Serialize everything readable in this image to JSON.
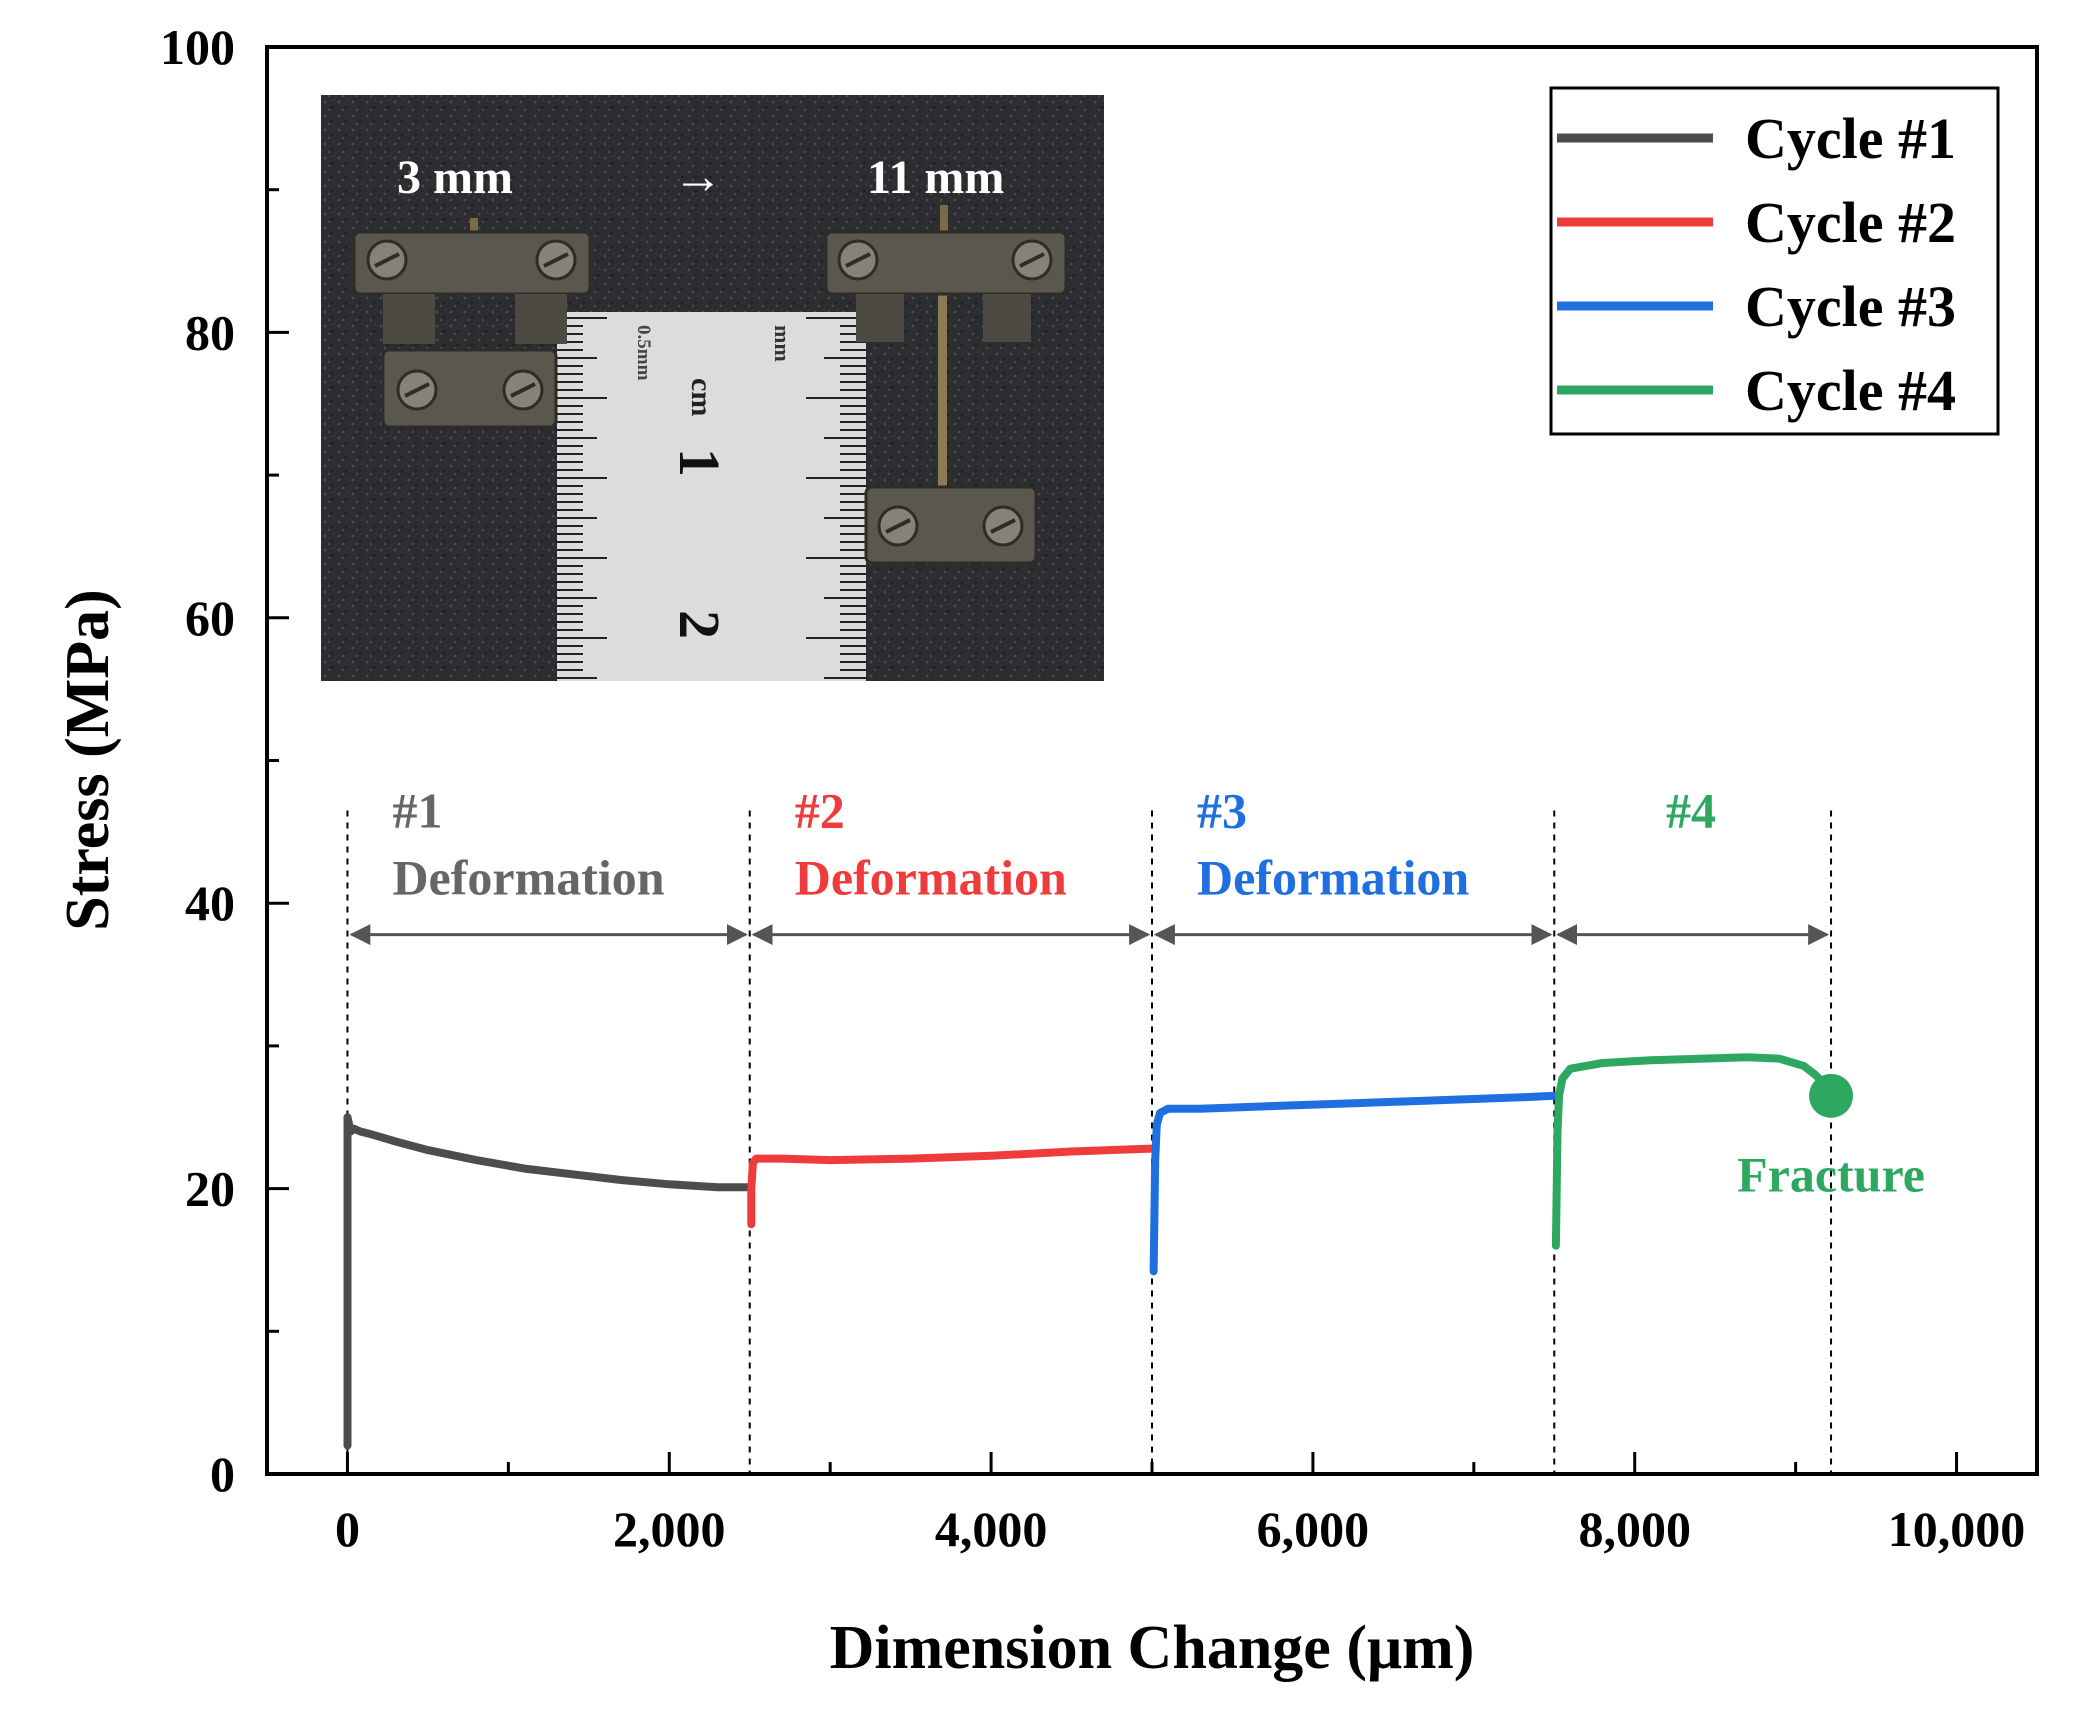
{
  "chart_data": {
    "type": "line",
    "title": "",
    "xlabel": "Dimension Change (μm)",
    "ylabel": "Stress (MPa)",
    "xlim": [
      -500,
      10500
    ],
    "ylim": [
      0,
      100
    ],
    "x_ticks": [
      0,
      2000,
      4000,
      6000,
      8000,
      10000
    ],
    "x_tick_labels": [
      "0",
      "2,000",
      "4,000",
      "6,000",
      "8,000",
      "10,000"
    ],
    "y_ticks": [
      0,
      20,
      40,
      60,
      80,
      100
    ],
    "y_tick_labels": [
      "0",
      "20",
      "40",
      "60",
      "80",
      "100"
    ],
    "grid": false,
    "legend_position": "top-right",
    "series": [
      {
        "name": "Cycle #1",
        "color": "#4d4d4d",
        "x": [
          0,
          0,
          0,
          20,
          40,
          80,
          150,
          300,
          500,
          800,
          1100,
          1400,
          1700,
          2000,
          2300,
          2500
        ],
        "y": [
          2,
          18,
          25,
          24,
          24.2,
          24,
          23.8,
          23.3,
          22.7,
          22,
          21.4,
          21,
          20.6,
          20.3,
          20.1,
          20.1
        ]
      },
      {
        "name": "Cycle #2",
        "color": "#ee3b3b",
        "x": [
          2510,
          2510,
          2520,
          2540,
          2700,
          3000,
          3500,
          4000,
          4500,
          5000
        ],
        "y": [
          17.5,
          20,
          21.8,
          22.1,
          22.1,
          22,
          22.1,
          22.3,
          22.6,
          22.8
        ]
      },
      {
        "name": "Cycle #3",
        "color": "#1f6fe0",
        "x": [
          5010,
          5015,
          5020,
          5030,
          5050,
          5100,
          5300,
          5800,
          6300,
          6800,
          7300,
          7500
        ],
        "y": [
          14.2,
          18,
          22,
          24.5,
          25.3,
          25.6,
          25.6,
          25.8,
          26,
          26.2,
          26.4,
          26.5
        ]
      },
      {
        "name": "Cycle #4",
        "color": "#2ea860",
        "x": [
          7510,
          7515,
          7520,
          7530,
          7550,
          7600,
          7800,
          8100,
          8400,
          8700,
          8900,
          9050,
          9120,
          9180,
          9220
        ],
        "y": [
          16,
          20,
          24,
          26.5,
          27.7,
          28.4,
          28.8,
          29,
          29.1,
          29.2,
          29.1,
          28.6,
          28,
          27.3,
          26.5
        ]
      }
    ],
    "cycle_boundaries": [
      0,
      2500,
      5000,
      7500,
      9220
    ],
    "region_labels": [
      {
        "number": "#1",
        "text": "Deformation",
        "color": "#666666"
      },
      {
        "number": "#2",
        "text": "Deformation",
        "color": "#ee3b3b"
      },
      {
        "number": "#3",
        "text": "Deformation",
        "color": "#1f6fe0"
      },
      {
        "number": "#4",
        "text": "",
        "color": "#2ea860"
      }
    ],
    "fracture": {
      "x": 9220,
      "y": 26.5,
      "label": "Fracture",
      "color": "#2ea860"
    },
    "inset_photo": {
      "left_label": "3 mm",
      "arrow": "→",
      "right_label": "11 mm",
      "ruler_unit_cm": "cm",
      "ruler_unit_mm": "mm",
      "ruler_small": "0.5mm",
      "ruler_number_1": "1",
      "ruler_number_2": "2"
    }
  }
}
